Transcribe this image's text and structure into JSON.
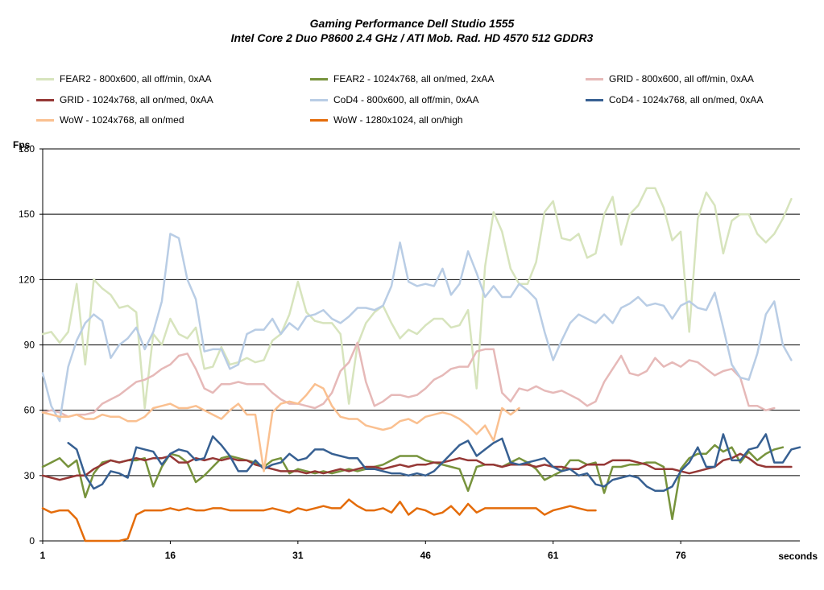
{
  "chart_data": {
    "type": "line",
    "title": "Gaming Performance Dell Studio 1555",
    "subtitle": "Intel Core 2 Duo P8600 2.4 GHz / ATI Mob. Rad. HD 4570 512 GDDR3",
    "ylabel": "Fps",
    "xlabel": "seconds",
    "ylim": [
      0,
      180
    ],
    "xlim": [
      1,
      90
    ],
    "yticks": [
      0,
      30,
      60,
      90,
      120,
      150,
      180
    ],
    "xticks": [
      1,
      16,
      31,
      46,
      61,
      76
    ],
    "grid": "horizontal",
    "legend_placement": "top",
    "series": [
      {
        "name": "FEAR2 - 800x600,  all off/min, 0xAA",
        "color": "#d7e4bd",
        "values": [
          95,
          96,
          91,
          96,
          118,
          81,
          120,
          116,
          113,
          107,
          108,
          105,
          61,
          95,
          90,
          102,
          95,
          93,
          98,
          79,
          80,
          89,
          81,
          82,
          84,
          82,
          83,
          92,
          95,
          104,
          119,
          105,
          101,
          100,
          100,
          95,
          63,
          90,
          100,
          105,
          108,
          100,
          93,
          97,
          95,
          99,
          102,
          102,
          98,
          99,
          106,
          70,
          126,
          151,
          142,
          125,
          118,
          118,
          128,
          151,
          156,
          139,
          138,
          141,
          130,
          132,
          150,
          158,
          136,
          150,
          154,
          162,
          162,
          153,
          138,
          142,
          96,
          148,
          160,
          154,
          132,
          147,
          150,
          150,
          141,
          137,
          141,
          148,
          157
        ],
        "x_start": 1
      },
      {
        "name": "FEAR2 - 1024x768,  all on/med, 2xAA",
        "color": "#77933c",
        "values": [
          34,
          36,
          38,
          34,
          37,
          20,
          31,
          36,
          37,
          36,
          37,
          37,
          38,
          25,
          34,
          40,
          39,
          36,
          27,
          30,
          34,
          38,
          39,
          38,
          37,
          36,
          34,
          37,
          38,
          31,
          33,
          32,
          31,
          32,
          31,
          32,
          33,
          32,
          33,
          34,
          35,
          37,
          39,
          39,
          39,
          37,
          36,
          35,
          34,
          33,
          23,
          34,
          35,
          35,
          34,
          36,
          38,
          36,
          33,
          28,
          30,
          32,
          37,
          37,
          35,
          36,
          22,
          34,
          34,
          35,
          35,
          36,
          36,
          34,
          10,
          33,
          38,
          40,
          40,
          44,
          41,
          43,
          36,
          41,
          37,
          40,
          42,
          43
        ],
        "x_start": 1
      },
      {
        "name": "GRID - 800x600,  all off/min, 0xAA",
        "color": "#e6b9b8",
        "values": [
          59,
          60,
          59,
          57,
          58,
          58,
          59,
          63,
          65,
          67,
          70,
          73,
          74,
          76,
          79,
          81,
          85,
          86,
          79,
          70,
          68,
          72,
          72,
          73,
          72,
          72,
          72,
          68,
          65,
          63,
          63,
          62,
          61,
          63,
          68,
          78,
          82,
          91,
          73,
          62,
          64,
          67,
          67,
          66,
          67,
          70,
          74,
          76,
          79,
          80,
          80,
          87,
          88,
          88,
          68,
          64,
          70,
          69,
          71,
          69,
          68,
          69,
          67,
          65,
          62,
          64,
          73,
          79,
          85,
          77,
          76,
          78,
          84,
          80,
          82,
          80,
          83,
          82,
          79,
          76,
          78,
          79,
          75,
          62,
          62,
          60,
          61
        ],
        "x_start": 1
      },
      {
        "name": "GRID - 1024x768,  all on/med, 0xAA",
        "color": "#953735",
        "values": [
          30,
          29,
          28,
          29,
          30,
          30,
          33,
          35,
          37,
          36,
          37,
          38,
          37,
          38,
          38,
          39,
          36,
          36,
          38,
          37,
          38,
          37,
          38,
          37,
          37,
          35,
          34,
          33,
          32,
          32,
          32,
          31,
          32,
          31,
          32,
          33,
          32,
          33,
          34,
          34,
          33,
          34,
          35,
          34,
          35,
          35,
          36,
          36,
          37,
          38,
          37,
          37,
          35,
          35,
          34,
          35,
          35,
          35,
          34,
          35,
          34,
          34,
          33,
          33,
          35,
          35,
          35,
          37,
          37,
          37,
          36,
          35,
          33,
          33,
          33,
          32,
          31,
          32,
          33,
          34,
          37,
          38,
          40,
          38,
          35,
          34,
          34,
          34,
          34
        ],
        "x_start": 1
      },
      {
        "name": "CoD4 - 800x600,  all off/min, 0xAA",
        "color": "#b9cde5",
        "values": [
          77,
          62,
          55,
          80,
          92,
          100,
          104,
          101,
          84,
          90,
          93,
          98,
          88,
          96,
          110,
          141,
          139,
          120,
          111,
          87,
          88,
          88,
          79,
          81,
          95,
          97,
          97,
          102,
          95,
          100,
          97,
          103,
          104,
          106,
          102,
          100,
          103,
          107,
          107,
          106,
          108,
          117,
          137,
          119,
          117,
          118,
          117,
          125,
          113,
          118,
          133,
          123,
          112,
          117,
          112,
          112,
          118,
          115,
          111,
          96,
          83,
          92,
          100,
          104,
          102,
          100,
          104,
          100,
          107,
          109,
          112,
          108,
          109,
          108,
          102,
          108,
          110,
          107,
          106,
          114,
          98,
          81,
          75,
          74,
          86,
          104,
          110,
          90,
          83
        ],
        "x_start": 1
      },
      {
        "name": "CoD4 - 1024x768,  all on/med, 0xAA",
        "color": "#376092",
        "values": [
          45,
          42,
          30,
          24,
          26,
          32,
          31,
          29,
          43,
          42,
          41,
          35,
          40,
          42,
          41,
          37,
          38,
          48,
          44,
          39,
          32,
          32,
          37,
          33,
          35,
          36,
          40,
          37,
          38,
          42,
          42,
          40,
          39,
          38,
          38,
          33,
          33,
          32,
          31,
          31,
          30,
          31,
          30,
          32,
          36,
          40,
          44,
          46,
          39,
          42,
          45,
          47,
          36,
          35,
          36,
          37,
          38,
          34,
          32,
          33,
          30,
          31,
          26,
          25,
          28,
          29,
          30,
          29,
          25,
          23,
          23,
          25,
          32,
          36,
          43,
          34,
          34,
          49,
          37,
          37,
          42,
          43,
          49,
          36,
          36,
          42,
          43
        ],
        "x_start": 4
      },
      {
        "name": "WoW - 1024x768,  all on/med",
        "color": "#fac090",
        "values": [
          59,
          58,
          57,
          57,
          58,
          56,
          56,
          58,
          57,
          57,
          55,
          55,
          57,
          61,
          62,
          63,
          61,
          61,
          62,
          60,
          58,
          56,
          60,
          63,
          58,
          58,
          32,
          59,
          63,
          64,
          63,
          67,
          72,
          70,
          62,
          57,
          56,
          56,
          53,
          52,
          51,
          52,
          55,
          56,
          54,
          57,
          58,
          59,
          58,
          56,
          53,
          49,
          53,
          46,
          61,
          58,
          61
        ],
        "x_start": 1
      },
      {
        "name": "WoW - 1280x1024,  all on/high",
        "color": "#e46c0a",
        "values": [
          15,
          13,
          14,
          14,
          10,
          0,
          0,
          0,
          0,
          0,
          1,
          12,
          14,
          14,
          14,
          15,
          14,
          15,
          14,
          14,
          15,
          15,
          14,
          14,
          14,
          14,
          14,
          15,
          14,
          13,
          15,
          14,
          15,
          16,
          15,
          15,
          19,
          16,
          14,
          14,
          15,
          13,
          18,
          12,
          15,
          14,
          12,
          13,
          16,
          12,
          17,
          13,
          15,
          15,
          15,
          15,
          15,
          15,
          15,
          12,
          14,
          15,
          16,
          15,
          14,
          14
        ],
        "x_start": 1
      }
    ]
  }
}
